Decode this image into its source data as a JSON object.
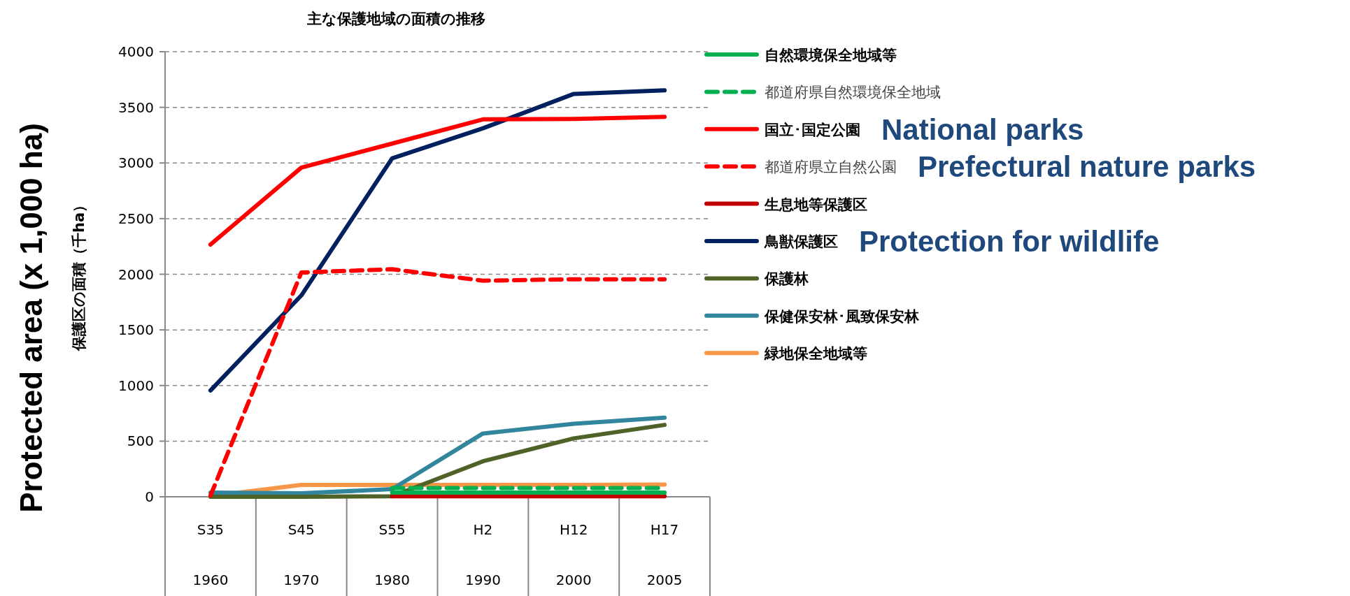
{
  "chart_data": {
    "type": "line",
    "title": "主な保護地域の面積の推移",
    "ylabel": "保護区の面積（千ha）",
    "categories": [
      "S35\n1960",
      "S45\n1970",
      "S55\n1980",
      "H2\n1990",
      "H12\n2000",
      "H17\n2005"
    ],
    "ylim": [
      0,
      4000
    ],
    "yticks": [
      0,
      500,
      1000,
      1500,
      2000,
      2500,
      3000,
      3500,
      4000
    ],
    "grid": "y",
    "legend": "right",
    "marker": "none",
    "series": [
      {
        "name": "自然環境保全地域等",
        "color": "#00b050",
        "line_style": "solid",
        "values": [
          null,
          null,
          37,
          37,
          37,
          37
        ]
      },
      {
        "name": "都道府県自然環境保全地域",
        "color": "#00b050",
        "line_style": "dashed",
        "values": [
          null,
          null,
          78,
          78,
          78,
          78
        ]
      },
      {
        "name": "国立･国定公園",
        "color": "#ff0000",
        "line_style": "solid",
        "values": [
          2267,
          2958,
          3174,
          3392,
          3395,
          3415
        ]
      },
      {
        "name": "都道府県立自然公園",
        "color": "#ff0000",
        "line_style": "dashed",
        "values": [
          10,
          2016,
          2045,
          1942,
          1955,
          1955
        ]
      },
      {
        "name": "生息地等保護区",
        "color": "#c00000",
        "line_style": "solid",
        "values": [
          null,
          null,
          5,
          5,
          5,
          5
        ]
      },
      {
        "name": "鳥獣保護区",
        "color": "#002060",
        "line_style": "solid",
        "values": [
          955,
          1810,
          3042,
          3312,
          3621,
          3653
        ]
      },
      {
        "name": "保護林",
        "color": "#4f6228",
        "line_style": "solid",
        "values": [
          0,
          0,
          5,
          319,
          525,
          646
        ]
      },
      {
        "name": "保健保安林･風致保安林",
        "color": "#31859c",
        "line_style": "solid",
        "values": [
          37,
          31,
          69,
          569,
          656,
          711
        ]
      },
      {
        "name": "緑地保全地域等",
        "color": "#f79646",
        "line_style": "solid",
        "values": [
          6,
          106,
          106,
          106,
          106,
          109
        ]
      }
    ],
    "annotations": [
      "Protected area (x 1,000 ha)",
      "National parks",
      "Prefectural nature parks",
      "Protection for wildlife"
    ]
  }
}
